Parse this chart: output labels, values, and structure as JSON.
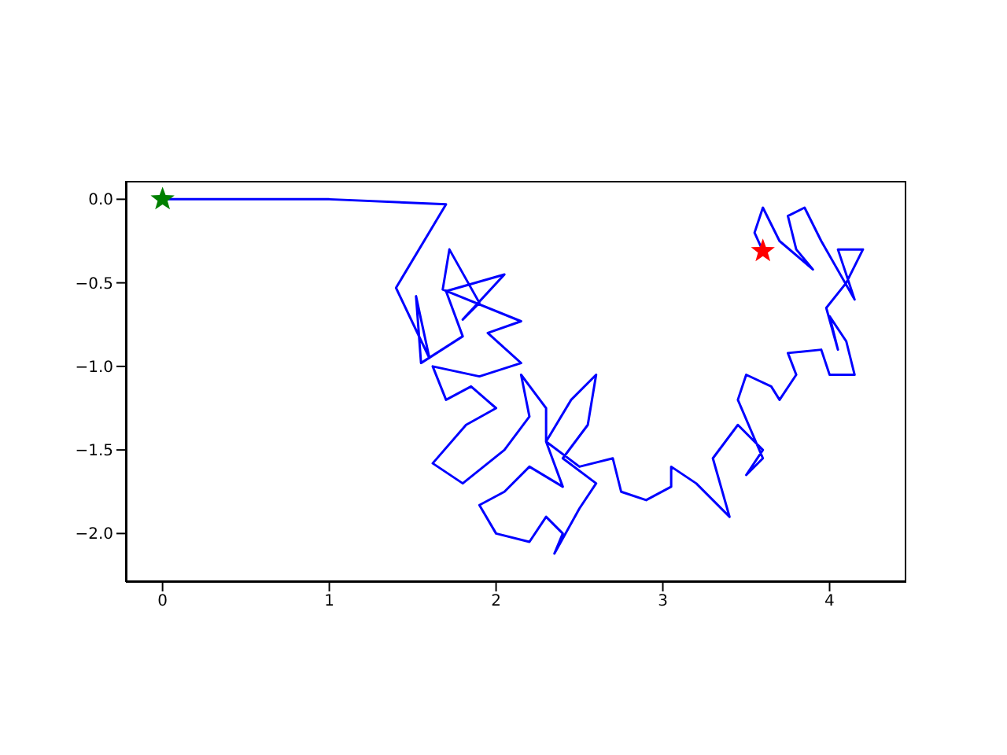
{
  "chart_data": {
    "type": "line",
    "xlim": [
      -0.22,
      4.46
    ],
    "ylim": [
      -2.29,
      0.11
    ],
    "xticks": [
      0,
      1,
      2,
      3,
      4
    ],
    "yticks": [
      {
        "value": 0,
        "label": "0.0"
      },
      {
        "value": -0.5,
        "label": "−0.5"
      },
      {
        "value": -1,
        "label": "−1.0"
      },
      {
        "value": -1.5,
        "label": "−1.5"
      },
      {
        "value": -2,
        "label": "−2.0"
      }
    ],
    "grid": false,
    "marker": "none",
    "line_style": "solid",
    "series": [
      {
        "color": "#0000ff",
        "x": [
          0,
          1.0,
          1.7,
          1.4,
          1.6,
          1.52,
          1.55,
          1.8,
          1.7,
          2.05,
          1.8,
          1.9,
          1.72,
          1.68,
          2.15,
          1.95,
          2.15,
          1.9,
          1.62,
          1.7,
          1.85,
          2.0,
          1.82,
          1.62,
          1.8,
          2.05,
          2.2,
          2.15,
          2.3,
          2.3,
          2.4,
          2.2,
          2.05,
          1.9,
          2.0,
          2.2,
          2.3,
          2.4,
          2.35,
          2.5,
          2.6,
          2.4,
          2.55,
          2.6,
          2.45,
          2.3,
          2.5,
          2.7,
          2.75,
          2.9,
          3.05,
          3.05,
          3.2,
          3.4,
          3.3,
          3.45,
          3.6,
          3.5,
          3.6,
          3.45,
          3.5,
          3.65,
          3.7,
          3.8,
          3.75,
          3.95,
          4.0,
          4.15,
          4.1,
          4.0,
          4.05,
          3.98,
          4.1,
          4.2,
          4.05,
          4.15,
          3.95,
          3.85,
          3.75,
          3.8,
          3.9,
          3.7,
          3.6,
          3.55,
          3.6
        ],
        "values": [
          0,
          0,
          -0.03,
          -0.53,
          -0.95,
          -0.58,
          -0.98,
          -0.82,
          -0.55,
          -0.45,
          -0.72,
          -0.62,
          -0.3,
          -0.54,
          -0.73,
          -0.8,
          -0.98,
          -1.06,
          -1.0,
          -1.2,
          -1.12,
          -1.25,
          -1.35,
          -1.58,
          -1.7,
          -1.5,
          -1.3,
          -1.05,
          -1.25,
          -1.45,
          -1.72,
          -1.6,
          -1.75,
          -1.83,
          -2.0,
          -2.05,
          -1.9,
          -2.0,
          -2.12,
          -1.85,
          -1.7,
          -1.55,
          -1.35,
          -1.05,
          -1.2,
          -1.45,
          -1.6,
          -1.55,
          -1.75,
          -1.8,
          -1.72,
          -1.6,
          -1.7,
          -1.9,
          -1.55,
          -1.35,
          -1.5,
          -1.65,
          -1.55,
          -1.2,
          -1.05,
          -1.12,
          -1.2,
          -1.05,
          -0.92,
          -0.9,
          -1.05,
          -1.05,
          -0.85,
          -0.7,
          -0.9,
          -0.65,
          -0.5,
          -0.3,
          -0.3,
          -0.6,
          -0.25,
          -0.05,
          -0.1,
          -0.3,
          -0.42,
          -0.25,
          -0.05,
          -0.2,
          -0.31
        ]
      },
      {
        "type": "scatter",
        "marker": "star",
        "color": "#008000",
        "x": [
          0
        ],
        "values": [
          0
        ]
      },
      {
        "type": "scatter",
        "marker": "star",
        "color": "#ff0000",
        "x": [
          3.6
        ],
        "values": [
          -0.31
        ]
      }
    ]
  }
}
